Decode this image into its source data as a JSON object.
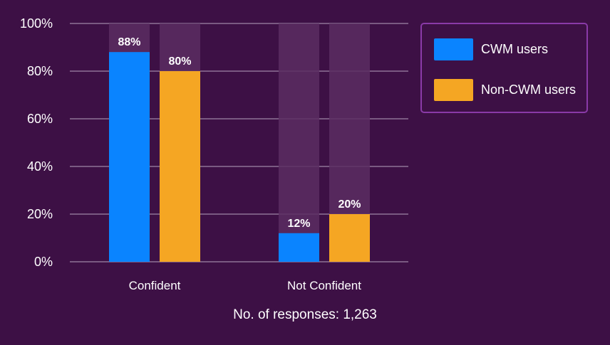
{
  "chart_data": {
    "type": "bar",
    "categories": [
      "Confident",
      "Not Confident"
    ],
    "series": [
      {
        "name": "CWM users",
        "values": [
          88,
          12
        ],
        "color": "#0a84ff",
        "labels": [
          "88%",
          "12%"
        ]
      },
      {
        "name": "Non-CWM users",
        "values": [
          80,
          20
        ],
        "color": "#f5a623",
        "labels": [
          "80%",
          "20%"
        ]
      }
    ],
    "ylim": [
      0,
      100
    ],
    "yticks": [
      0,
      20,
      40,
      60,
      80,
      100
    ],
    "ytick_labels": [
      "0%",
      "20%",
      "40%",
      "60%",
      "80%",
      "100%"
    ],
    "grid": true,
    "legend_position": "top-right",
    "background_bar_color": "#5a2d62",
    "footnote": "No. of responses: 1,263"
  },
  "colors": {
    "background": "#3d1045",
    "grid": "#7a5a82",
    "legend_border": "#8a3aa8"
  }
}
